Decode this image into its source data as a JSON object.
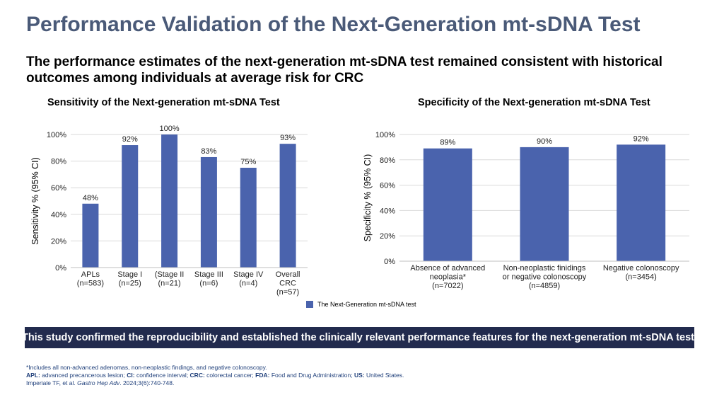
{
  "title": "Performance Validation of the Next-Generation mt-sDNA Test",
  "subtitle": "The performance estimates of the next-generation mt-sDNA test remained consistent with historical outcomes among individuals at average risk for CRC",
  "legend_label": "The Next-Generation mt-sDNA test",
  "banner": "This study confirmed the reproducibility and established the clinically relevant performance features for the next-generation mt-sDNA test.",
  "footnotes": {
    "line1": "*Includes all non-advanced adenomas, non-neoplastic findings, and negative colonoscopy.",
    "apl_abbr": "APL:",
    "apl_text": " advanced precancerous lesion; ",
    "ci_abbr": "CI:",
    "ci_text": " confidence interval; ",
    "crc_abbr": "CRC:",
    "crc_text": " colorectal cancer; ",
    "fda_abbr": "FDA:",
    "fda_text": " Food and Drug Administration; ",
    "us_abbr": "US:",
    "us_text": " United States.",
    "citation_pre": "Imperiale TF, et al. ",
    "citation_journal": "Gastro Hep Adv",
    "citation_post": ". 2024;3(6):740-748."
  },
  "colors": {
    "bar": "#4a63ad",
    "title": "#4a5a78",
    "banner": "#222b4e"
  },
  "chart_data": [
    {
      "type": "bar",
      "title": "Sensitivity of the Next-generation mt-sDNA Test",
      "ylabel": "Sensitivity % (95% CI)",
      "xlabel": "",
      "ylim": [
        0,
        100
      ],
      "yticks": [
        "0%",
        "20%",
        "40%",
        "60%",
        "80%",
        "100%"
      ],
      "grid": true,
      "categories": [
        [
          "APLs",
          "(n=583)"
        ],
        [
          "Stage I",
          "(n=25)"
        ],
        [
          "(Stage II",
          "(n=21)"
        ],
        [
          "Stage III",
          "(n=6)"
        ],
        [
          "Stage IV",
          "(n=4)"
        ],
        [
          "Overall",
          "CRC",
          "(n=57)"
        ]
      ],
      "values": [
        48,
        92,
        100,
        83,
        75,
        93
      ],
      "labels": [
        "48%",
        "92%",
        "100%",
        "83%",
        "75%",
        "93%"
      ]
    },
    {
      "type": "bar",
      "title": "Specificity of the Next-generation mt-sDNA Test",
      "ylabel": "Specificity % (95% CI)",
      "xlabel": "",
      "ylim": [
        0,
        100
      ],
      "yticks": [
        "0%",
        "20%",
        "40%",
        "60%",
        "80%",
        "100%"
      ],
      "grid": true,
      "categories": [
        [
          "Absence of advanced",
          "neoplasia*",
          "(n=7022)"
        ],
        [
          "Non-neoplastic finidings",
          "or negative colonoscopy",
          "(n=4859)"
        ],
        [
          "Negative colonoscopy",
          "(n=3454)"
        ]
      ],
      "values": [
        89,
        90,
        92
      ],
      "labels": [
        "89%",
        "90%",
        "92%"
      ],
      "legend": "bottom-center"
    }
  ]
}
